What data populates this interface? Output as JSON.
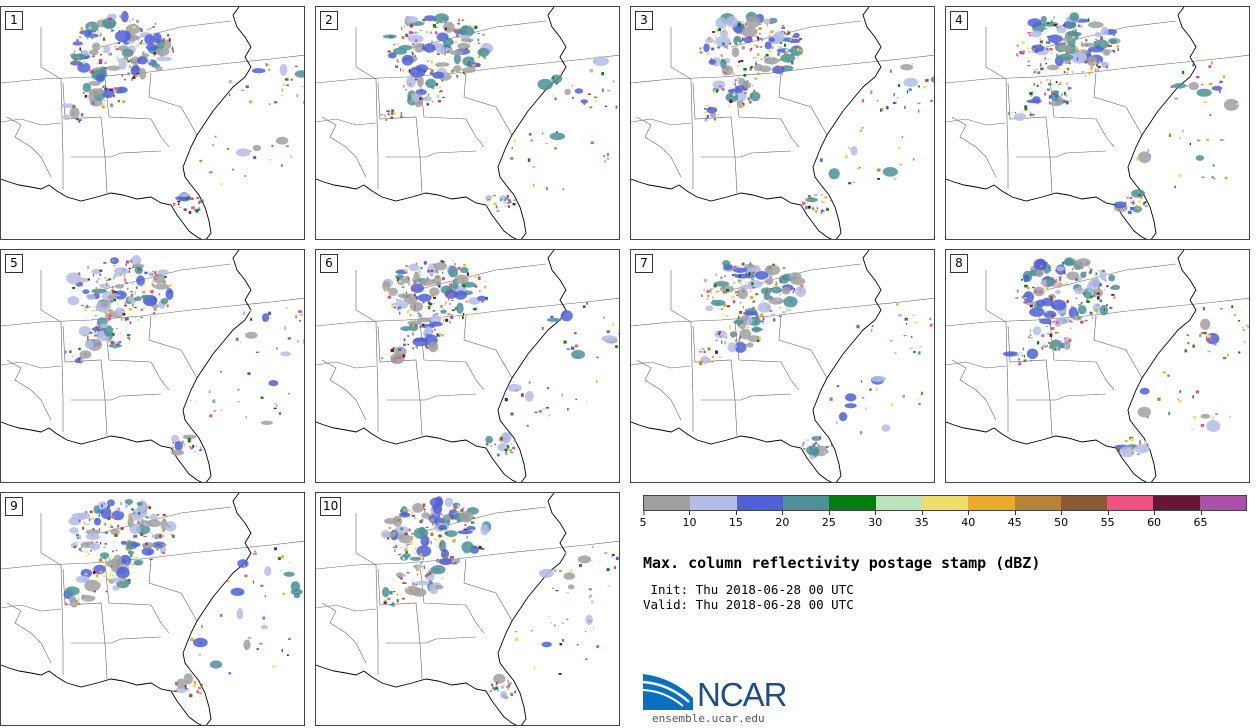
{
  "title": "Max. column reflectivity postage stamp (dBZ)",
  "init": " Init: Thu 2018-06-28 00 UTC",
  "valid": "Valid: Thu 2018-06-28 00 UTC",
  "members": [
    "1",
    "2",
    "3",
    "4",
    "5",
    "6",
    "7",
    "8",
    "9",
    "10"
  ],
  "colorbar": {
    "ticks": [
      "5",
      "10",
      "15",
      "20",
      "25",
      "30",
      "35",
      "40",
      "45",
      "50",
      "55",
      "60",
      "65"
    ],
    "colors": [
      "#a0a0a0",
      "#b4bce6",
      "#5060d6",
      "#4b9195",
      "#007f0f",
      "#bde3bd",
      "#f0dd6b",
      "#ebab2a",
      "#b98336",
      "#8a5937",
      "#f05282",
      "#671638",
      "#ad51a8"
    ]
  },
  "logo": {
    "name": "NCAR",
    "url": "ensemble.ucar.edu",
    "icon": "ncar-swoosh-icon"
  }
}
